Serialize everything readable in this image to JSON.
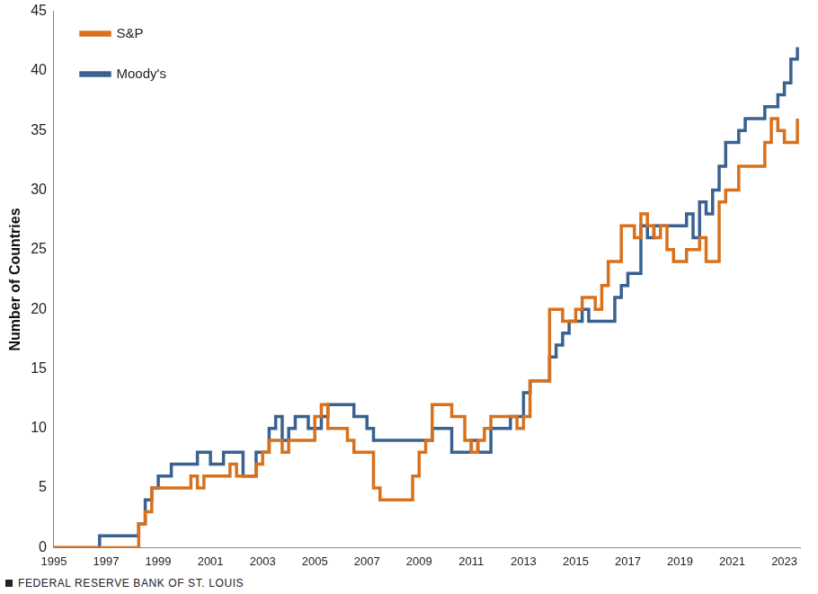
{
  "chart_data": {
    "type": "line",
    "y_label": "Number of Countries",
    "source": "FEDERAL RESERVE BANK OF ST. LOUIS",
    "x": [
      1995,
      1995.25,
      1995.5,
      1995.75,
      1996,
      1996.25,
      1996.5,
      1996.75,
      1997,
      1997.25,
      1997.5,
      1997.75,
      1998,
      1998.25,
      1998.5,
      1998.75,
      1999,
      1999.25,
      1999.5,
      1999.75,
      2000,
      2000.25,
      2000.5,
      2000.75,
      2001,
      2001.25,
      2001.5,
      2001.75,
      2002,
      2002.25,
      2002.5,
      2002.75,
      2003,
      2003.25,
      2003.5,
      2003.75,
      2004,
      2004.25,
      2004.5,
      2004.75,
      2005,
      2005.25,
      2005.5,
      2005.75,
      2006,
      2006.25,
      2006.5,
      2006.75,
      2007,
      2007.25,
      2007.5,
      2007.75,
      2008,
      2008.25,
      2008.5,
      2008.75,
      2009,
      2009.25,
      2009.5,
      2009.75,
      2010,
      2010.25,
      2010.5,
      2010.75,
      2011,
      2011.25,
      2011.5,
      2011.75,
      2012,
      2012.25,
      2012.5,
      2012.75,
      2013,
      2013.25,
      2013.5,
      2013.75,
      2014,
      2014.25,
      2014.5,
      2014.75,
      2015,
      2015.25,
      2015.5,
      2015.75,
      2016,
      2016.25,
      2016.5,
      2016.75,
      2017,
      2017.25,
      2017.5,
      2017.75,
      2018,
      2018.25,
      2018.5,
      2018.75,
      2019,
      2019.25,
      2019.5,
      2019.75,
      2020,
      2020.25,
      2020.5,
      2020.75,
      2021,
      2021.25,
      2021.5,
      2021.75,
      2022,
      2022.25,
      2022.5,
      2022.75,
      2023,
      2023.25,
      2023.5
    ],
    "series": [
      {
        "name": "S&P",
        "color": "#d9711c",
        "values": [
          0,
          0,
          0,
          0,
          0,
          0,
          0,
          0,
          0,
          0,
          0,
          0,
          0,
          2,
          3,
          5,
          5,
          5,
          5,
          5,
          5,
          6,
          5,
          6,
          6,
          6,
          6,
          7,
          6,
          6,
          6,
          7,
          8,
          9,
          9,
          8,
          9,
          9,
          9,
          9,
          11,
          12,
          10,
          10,
          10,
          9,
          8,
          8,
          8,
          5,
          4,
          4,
          4,
          4,
          4,
          6,
          8,
          9,
          12,
          12,
          12,
          11,
          11,
          9,
          8,
          9,
          10,
          11,
          11,
          11,
          11,
          10,
          11,
          14,
          14,
          14,
          20,
          20,
          19,
          19,
          20,
          21,
          21,
          20,
          22,
          24,
          24,
          27,
          27,
          26,
          28,
          27,
          26,
          27,
          25,
          24,
          24,
          25,
          25,
          26,
          24,
          24,
          29,
          30,
          30,
          32,
          32,
          32,
          32,
          34,
          36,
          35,
          34,
          34,
          36
        ]
      },
      {
        "name": "Moody's",
        "color": "#3a6190",
        "values": [
          0,
          0,
          0,
          0,
          0,
          0,
          0,
          1,
          1,
          1,
          1,
          1,
          1,
          2,
          4,
          5,
          6,
          6,
          7,
          7,
          7,
          7,
          8,
          8,
          7,
          7,
          8,
          8,
          8,
          6,
          6,
          8,
          8,
          10,
          11,
          9,
          10,
          11,
          11,
          10,
          10,
          11,
          12,
          12,
          12,
          12,
          11,
          11,
          10,
          9,
          9,
          9,
          9,
          9,
          9,
          9,
          9,
          9,
          10,
          10,
          10,
          8,
          8,
          8,
          9,
          8,
          8,
          10,
          10,
          10,
          11,
          11,
          13,
          14,
          14,
          14,
          16,
          17,
          18,
          19,
          19,
          20,
          19,
          19,
          19,
          19,
          21,
          22,
          23,
          23,
          27,
          26,
          27,
          27,
          27,
          27,
          27,
          28,
          26,
          29,
          28,
          30,
          32,
          34,
          34,
          35,
          36,
          36,
          36,
          37,
          37,
          38,
          39,
          41,
          42
        ]
      }
    ],
    "xlim": [
      1995,
      2023.6
    ],
    "xticks": [
      1995,
      1997,
      1999,
      2001,
      2003,
      2005,
      2007,
      2009,
      2011,
      2013,
      2015,
      2017,
      2019,
      2021,
      2023
    ],
    "ylim": [
      0,
      45
    ],
    "yticks": [
      0,
      5,
      10,
      15,
      20,
      25,
      30,
      35,
      40,
      45
    ],
    "grid": false,
    "legend": "upper left"
  }
}
